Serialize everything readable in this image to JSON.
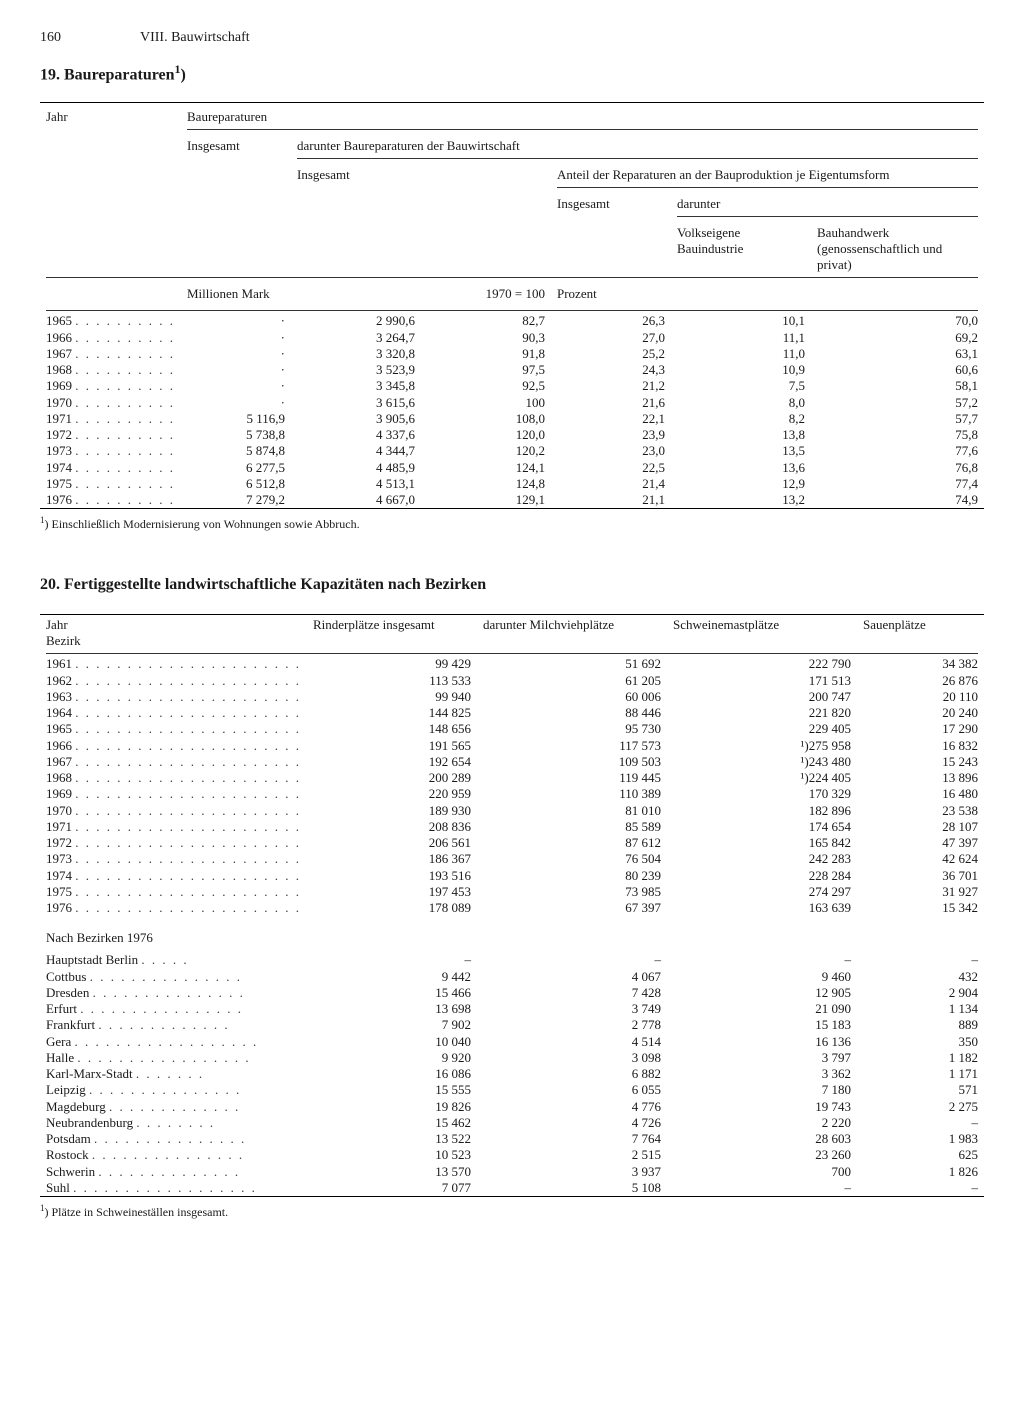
{
  "page": {
    "number": "160",
    "chapter": "VIII. Bauwirtschaft"
  },
  "t19": {
    "title": "19. Baureparaturen",
    "title_sup": "1",
    "title_tail": ")",
    "head": {
      "jahr": "Jahr",
      "baureparaturen": "Baureparaturen",
      "insgesamt_left": "Insgesamt",
      "darunter": "darunter Baureparaturen der Bauwirtschaft",
      "insgesamt_mid": "Insgesamt",
      "anteil": "Anteil der Reparaturen an der Bauproduktion je Eigentumsform",
      "insgesamt_r": "Insgesamt",
      "darunter_r": "darunter",
      "volkseigene": "Volkseigene Bauindustrie",
      "bauhandwerk": "Bauhandwerk (genossenschaftlich und privat)",
      "mio_mark": "Millionen Mark",
      "base100": "1970 = 100",
      "prozent": "Prozent"
    },
    "rows": [
      {
        "jahr": "1965",
        "col1": "·",
        "col2": "2 990,6",
        "col3": "82,7",
        "col4": "26,3",
        "col5": "10,1",
        "col6": "70,0"
      },
      {
        "jahr": "1966",
        "col1": "·",
        "col2": "3 264,7",
        "col3": "90,3",
        "col4": "27,0",
        "col5": "11,1",
        "col6": "69,2"
      },
      {
        "jahr": "1967",
        "col1": "·",
        "col2": "3 320,8",
        "col3": "91,8",
        "col4": "25,2",
        "col5": "11,0",
        "col6": "63,1"
      },
      {
        "jahr": "1968",
        "col1": "·",
        "col2": "3 523,9",
        "col3": "97,5",
        "col4": "24,3",
        "col5": "10,9",
        "col6": "60,6"
      },
      {
        "jahr": "1969",
        "col1": "·",
        "col2": "3 345,8",
        "col3": "92,5",
        "col4": "21,2",
        "col5": "7,5",
        "col6": "58,1"
      },
      {
        "jahr": "1970",
        "col1": "·",
        "col2": "3 615,6",
        "col3": "100",
        "col4": "21,6",
        "col5": "8,0",
        "col6": "57,2"
      },
      {
        "jahr": "1971",
        "col1": "5 116,9",
        "col2": "3 905,6",
        "col3": "108,0",
        "col4": "22,1",
        "col5": "8,2",
        "col6": "57,7"
      },
      {
        "jahr": "1972",
        "col1": "5 738,8",
        "col2": "4 337,6",
        "col3": "120,0",
        "col4": "23,9",
        "col5": "13,8",
        "col6": "75,8"
      },
      {
        "jahr": "1973",
        "col1": "5 874,8",
        "col2": "4 344,7",
        "col3": "120,2",
        "col4": "23,0",
        "col5": "13,5",
        "col6": "77,6"
      },
      {
        "jahr": "1974",
        "col1": "6 277,5",
        "col2": "4 485,9",
        "col3": "124,1",
        "col4": "22,5",
        "col5": "13,6",
        "col6": "76,8"
      },
      {
        "jahr": "1975",
        "col1": "6 512,8",
        "col2": "4 513,1",
        "col3": "124,8",
        "col4": "21,4",
        "col5": "12,9",
        "col6": "77,4"
      },
      {
        "jahr": "1976",
        "col1": "7 279,2",
        "col2": "4 667,0",
        "col3": "129,1",
        "col4": "21,1",
        "col5": "13,2",
        "col6": "74,9"
      }
    ],
    "footnote_sup": "1",
    "footnote": ") Einschließlich Modernisierung von Wohnungen sowie Abbruch."
  },
  "t20": {
    "title": "20. Fertiggestellte landwirtschaftliche Kapazitäten nach Bezirken",
    "head": {
      "jahr_bezirk": "Jahr\nBezirk",
      "rinder": "Rinderplätze insgesamt",
      "milchvieh": "darunter Milchviehplätze",
      "schweine": "Schweinemastplätze",
      "sauen": "Sauenplätze"
    },
    "year_rows": [
      {
        "jahr": "1961",
        "rinder": "99 429",
        "milch": "51 692",
        "schw": "222 790",
        "sau": "34 382"
      },
      {
        "jahr": "1962",
        "rinder": "113 533",
        "milch": "61 205",
        "schw": "171 513",
        "sau": "26 876"
      },
      {
        "jahr": "1963",
        "rinder": "99 940",
        "milch": "60 006",
        "schw": "200 747",
        "sau": "20 110"
      },
      {
        "jahr": "1964",
        "rinder": "144 825",
        "milch": "88 446",
        "schw": "221 820",
        "sau": "20 240"
      },
      {
        "jahr": "1965",
        "rinder": "148 656",
        "milch": "95 730",
        "schw": "229 405",
        "sau": "17 290"
      },
      {
        "jahr": "1966",
        "rinder": "191 565",
        "milch": "117 573",
        "schw": "¹)275 958",
        "sau": "16 832"
      },
      {
        "jahr": "1967",
        "rinder": "192 654",
        "milch": "109 503",
        "schw": "¹)243 480",
        "sau": "15 243"
      },
      {
        "jahr": "1968",
        "rinder": "200 289",
        "milch": "119 445",
        "schw": "¹)224 405",
        "sau": "13 896"
      },
      {
        "jahr": "1969",
        "rinder": "220 959",
        "milch": "110 389",
        "schw": "170 329",
        "sau": "16 480"
      },
      {
        "jahr": "1970",
        "rinder": "189 930",
        "milch": "81 010",
        "schw": "182 896",
        "sau": "23 538"
      },
      {
        "jahr": "1971",
        "rinder": "208 836",
        "milch": "85 589",
        "schw": "174 654",
        "sau": "28 107"
      },
      {
        "jahr": "1972",
        "rinder": "206 561",
        "milch": "87 612",
        "schw": "165 842",
        "sau": "47 397"
      },
      {
        "jahr": "1973",
        "rinder": "186 367",
        "milch": "76 504",
        "schw": "242 283",
        "sau": "42 624"
      },
      {
        "jahr": "1974",
        "rinder": "193 516",
        "milch": "80 239",
        "schw": "228 284",
        "sau": "36 701"
      },
      {
        "jahr": "1975",
        "rinder": "197 453",
        "milch": "73 985",
        "schw": "274 297",
        "sau": "31 927"
      },
      {
        "jahr": "1976",
        "rinder": "178 089",
        "milch": "67 397",
        "schw": "163 639",
        "sau": "15 342"
      }
    ],
    "subhead": "Nach Bezirken 1976",
    "bezirk_rows": [
      {
        "bezirk": "Hauptstadt Berlin",
        "rinder": "–",
        "milch": "–",
        "schw": "–",
        "sau": "–"
      },
      {
        "bezirk": "Cottbus",
        "rinder": "9 442",
        "milch": "4 067",
        "schw": "9 460",
        "sau": "432"
      },
      {
        "bezirk": "Dresden",
        "rinder": "15 466",
        "milch": "7 428",
        "schw": "12 905",
        "sau": "2 904"
      },
      {
        "bezirk": "Erfurt",
        "rinder": "13 698",
        "milch": "3 749",
        "schw": "21 090",
        "sau": "1 134"
      },
      {
        "bezirk": "Frankfurt",
        "rinder": "7 902",
        "milch": "2 778",
        "schw": "15 183",
        "sau": "889"
      },
      {
        "bezirk": "Gera",
        "rinder": "10 040",
        "milch": "4 514",
        "schw": "16 136",
        "sau": "350"
      },
      {
        "bezirk": "Halle",
        "rinder": "9 920",
        "milch": "3 098",
        "schw": "3 797",
        "sau": "1 182"
      },
      {
        "bezirk": "Karl-Marx-Stadt",
        "rinder": "16 086",
        "milch": "6 882",
        "schw": "3 362",
        "sau": "1 171"
      },
      {
        "bezirk": "Leipzig",
        "rinder": "15 555",
        "milch": "6 055",
        "schw": "7 180",
        "sau": "571"
      },
      {
        "bezirk": "Magdeburg",
        "rinder": "19 826",
        "milch": "4 776",
        "schw": "19 743",
        "sau": "2 275"
      },
      {
        "bezirk": "Neubrandenburg",
        "rinder": "15 462",
        "milch": "4 726",
        "schw": "2 220",
        "sau": "–"
      },
      {
        "bezirk": "Potsdam",
        "rinder": "13 522",
        "milch": "7 764",
        "schw": "28 603",
        "sau": "1 983"
      },
      {
        "bezirk": "Rostock",
        "rinder": "10 523",
        "milch": "2 515",
        "schw": "23 260",
        "sau": "625"
      },
      {
        "bezirk": "Schwerin",
        "rinder": "13 570",
        "milch": "3 937",
        "schw": "700",
        "sau": "1 826"
      },
      {
        "bezirk": "Suhl",
        "rinder": "7 077",
        "milch": "5 108",
        "schw": "–",
        "sau": "–"
      }
    ],
    "footnote_sup": "1",
    "footnote": ") Plätze in Schweineställen insgesamt."
  },
  "dots_short": ". . . . . . . . . .",
  "dots_long": ". . . . . . . . . . . . . . . . . . . . . ."
}
